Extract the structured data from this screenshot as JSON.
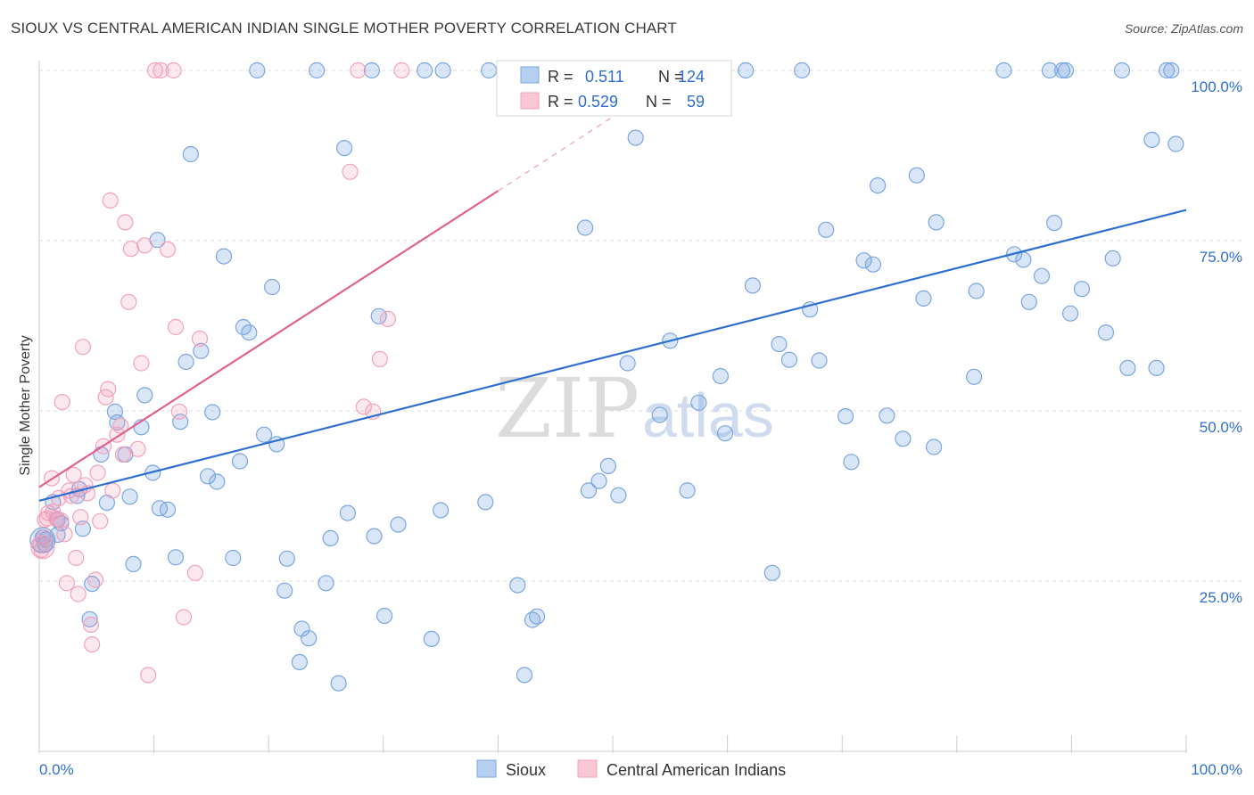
{
  "header": {
    "title": "SIOUX VS CENTRAL AMERICAN INDIAN SINGLE MOTHER POVERTY CORRELATION CHART",
    "source": "Source: ZipAtlas.com"
  },
  "watermark": {
    "zip": "ZIP",
    "atlas": "atlas"
  },
  "legend_box": {
    "rows": [
      {
        "r_label": "R =",
        "r_value": "0.511",
        "n_label": "N =",
        "n_value": "124"
      },
      {
        "r_label": "R =",
        "r_value": "0.529",
        "n_label": "N =",
        "n_value": "59"
      }
    ]
  },
  "chart_data": {
    "type": "scatter",
    "title": "SIOUX VS CENTRAL AMERICAN INDIAN SINGLE MOTHER POVERTY CORRELATION CHART",
    "xlabel": "",
    "ylabel": "Single Mother Poverty",
    "xlim": [
      0,
      100
    ],
    "ylim": [
      0,
      100
    ],
    "x_tick_labels": {
      "left": "0.0%",
      "right": "100.0%"
    },
    "y_ticks": [
      {
        "value": 25,
        "label": "25.0%"
      },
      {
        "value": 50,
        "label": "50.0%"
      },
      {
        "value": 75,
        "label": "75.0%"
      },
      {
        "value": 100,
        "label": "100.0%"
      }
    ],
    "grid": true,
    "legend": {
      "position": "bottom-center"
    },
    "series": [
      {
        "name": "Sioux",
        "color": "#7aa6e0",
        "line_color": "#2f6fcf",
        "trend": {
          "x0": 0,
          "y0": 36.8,
          "x1": 100,
          "y1": 79.5
        },
        "points": [
          [
            0.3,
            31.4
          ],
          [
            0.5,
            30.4
          ],
          [
            0.6,
            31.1
          ],
          [
            1.2,
            36.6
          ],
          [
            1.6,
            34.0
          ],
          [
            1.9,
            33.5
          ],
          [
            3.3,
            37.5
          ],
          [
            3.5,
            38.5
          ],
          [
            3.8,
            32.7
          ],
          [
            4.6,
            24.6
          ],
          [
            4.4,
            19.4
          ],
          [
            5.4,
            43.6
          ],
          [
            5.9,
            36.5
          ],
          [
            6.6,
            49.9
          ],
          [
            6.8,
            48.3
          ],
          [
            7.5,
            43.6
          ],
          [
            7.9,
            37.4
          ],
          [
            8.2,
            27.5
          ],
          [
            8.9,
            47.6
          ],
          [
            9.2,
            52.3
          ],
          [
            9.9,
            40.9
          ],
          [
            10.3,
            75.1
          ],
          [
            10.5,
            35.7
          ],
          [
            11.2,
            35.5
          ],
          [
            11.9,
            28.5
          ],
          [
            12.3,
            48.4
          ],
          [
            12.8,
            57.2
          ],
          [
            13.2,
            87.7
          ],
          [
            14.1,
            58.8
          ],
          [
            14.7,
            40.4
          ],
          [
            15.1,
            49.8
          ],
          [
            15.5,
            39.6
          ],
          [
            16.1,
            72.7
          ],
          [
            16.9,
            28.4
          ],
          [
            17.5,
            42.6
          ],
          [
            17.8,
            62.3
          ],
          [
            18.3,
            61.5
          ],
          [
            19.0,
            100.0
          ],
          [
            19.6,
            46.5
          ],
          [
            20.3,
            68.2
          ],
          [
            20.7,
            45.1
          ],
          [
            21.4,
            23.6
          ],
          [
            21.6,
            28.3
          ],
          [
            22.7,
            13.1
          ],
          [
            22.9,
            18.0
          ],
          [
            23.5,
            16.6
          ],
          [
            24.2,
            100.0
          ],
          [
            25.0,
            24.7
          ],
          [
            25.4,
            31.3
          ],
          [
            26.1,
            10.0
          ],
          [
            26.6,
            88.6
          ],
          [
            26.9,
            35.0
          ],
          [
            29.0,
            100.0
          ],
          [
            29.2,
            31.6
          ],
          [
            29.6,
            63.9
          ],
          [
            30.1,
            19.9
          ],
          [
            31.3,
            33.3
          ],
          [
            33.6,
            100.0
          ],
          [
            34.2,
            16.5
          ],
          [
            35.0,
            35.4
          ],
          [
            35.2,
            100.0
          ],
          [
            38.9,
            36.6
          ],
          [
            39.2,
            100.0
          ],
          [
            41.7,
            24.4
          ],
          [
            42.3,
            11.2
          ],
          [
            43.0,
            19.3
          ],
          [
            43.4,
            19.8
          ],
          [
            47.6,
            76.9
          ],
          [
            47.9,
            38.3
          ],
          [
            48.8,
            39.7
          ],
          [
            49.6,
            41.9
          ],
          [
            50.5,
            37.6
          ],
          [
            51.3,
            57.0
          ],
          [
            52.0,
            90.1
          ],
          [
            53.0,
            100.0
          ],
          [
            54.1,
            49.4
          ],
          [
            55.0,
            60.3
          ],
          [
            56.5,
            38.3
          ],
          [
            57.5,
            51.2
          ],
          [
            59.4,
            55.1
          ],
          [
            59.8,
            46.7
          ],
          [
            61.6,
            100.0
          ],
          [
            62.2,
            68.4
          ],
          [
            63.9,
            26.2
          ],
          [
            64.5,
            59.8
          ],
          [
            65.4,
            57.5
          ],
          [
            66.5,
            100.0
          ],
          [
            67.2,
            64.9
          ],
          [
            68.0,
            57.4
          ],
          [
            68.6,
            76.6
          ],
          [
            70.8,
            42.5
          ],
          [
            70.3,
            49.2
          ],
          [
            71.9,
            72.1
          ],
          [
            72.7,
            71.5
          ],
          [
            73.1,
            83.1
          ],
          [
            73.9,
            49.3
          ],
          [
            75.3,
            45.9
          ],
          [
            76.5,
            84.6
          ],
          [
            77.1,
            66.5
          ],
          [
            78.0,
            44.7
          ],
          [
            78.2,
            77.7
          ],
          [
            81.5,
            55.0
          ],
          [
            81.7,
            67.6
          ],
          [
            84.1,
            100.0
          ],
          [
            85.0,
            73.0
          ],
          [
            85.8,
            72.2
          ],
          [
            86.3,
            66.0
          ],
          [
            87.4,
            69.8
          ],
          [
            88.1,
            100.0
          ],
          [
            88.5,
            77.6
          ],
          [
            89.2,
            100.0
          ],
          [
            89.5,
            100.0
          ],
          [
            89.9,
            64.3
          ],
          [
            90.9,
            67.9
          ],
          [
            93.0,
            61.5
          ],
          [
            93.6,
            72.4
          ],
          [
            94.4,
            100.0
          ],
          [
            94.9,
            56.3
          ],
          [
            97.0,
            89.8
          ],
          [
            97.4,
            56.3
          ],
          [
            98.3,
            100.0
          ],
          [
            98.7,
            100.0
          ],
          [
            99.1,
            89.2
          ],
          [
            1.6,
            31.8
          ]
        ]
      },
      {
        "name": "Central American Indians",
        "color": "#f2a3bb",
        "line_color": "#e0638f",
        "trend": {
          "x0": 0,
          "y0": 38.8,
          "x1": 40,
          "y1": 82.3
        },
        "points": [
          [
            0.1,
            30.3
          ],
          [
            0.2,
            29.6
          ],
          [
            0.4,
            31.4
          ],
          [
            0.5,
            34.0
          ],
          [
            0.7,
            34.2
          ],
          [
            0.8,
            35.0
          ],
          [
            1.1,
            40.1
          ],
          [
            1.2,
            35.2
          ],
          [
            1.5,
            34.2
          ],
          [
            1.7,
            37.2
          ],
          [
            1.9,
            33.9
          ],
          [
            2.0,
            51.3
          ],
          [
            2.2,
            31.9
          ],
          [
            2.4,
            24.7
          ],
          [
            2.6,
            38.3
          ],
          [
            2.8,
            37.5
          ],
          [
            3.0,
            40.6
          ],
          [
            3.2,
            28.4
          ],
          [
            3.4,
            23.1
          ],
          [
            3.6,
            34.4
          ],
          [
            3.8,
            59.4
          ],
          [
            4.0,
            39.1
          ],
          [
            4.2,
            37.9
          ],
          [
            4.5,
            18.6
          ],
          [
            4.6,
            15.7
          ],
          [
            4.9,
            25.2
          ],
          [
            5.1,
            40.9
          ],
          [
            5.3,
            33.8
          ],
          [
            5.6,
            44.8
          ],
          [
            5.8,
            52.0
          ],
          [
            6.0,
            53.2
          ],
          [
            6.2,
            80.9
          ],
          [
            6.4,
            38.3
          ],
          [
            6.8,
            46.5
          ],
          [
            7.1,
            47.8
          ],
          [
            7.3,
            43.6
          ],
          [
            7.5,
            77.7
          ],
          [
            7.8,
            66.0
          ],
          [
            8.0,
            73.8
          ],
          [
            8.6,
            44.4
          ],
          [
            8.9,
            57.0
          ],
          [
            9.2,
            74.3
          ],
          [
            9.5,
            11.2
          ],
          [
            10.1,
            100.0
          ],
          [
            10.6,
            100.0
          ],
          [
            11.2,
            73.7
          ],
          [
            11.7,
            100.0
          ],
          [
            11.9,
            62.3
          ],
          [
            12.2,
            49.9
          ],
          [
            12.6,
            19.7
          ],
          [
            13.6,
            26.2
          ],
          [
            14.0,
            60.6
          ],
          [
            27.1,
            85.1
          ],
          [
            27.8,
            100.0
          ],
          [
            28.3,
            50.6
          ],
          [
            29.1,
            49.9
          ],
          [
            29.7,
            57.6
          ],
          [
            30.4,
            63.5
          ],
          [
            31.6,
            100.0
          ]
        ]
      }
    ]
  }
}
